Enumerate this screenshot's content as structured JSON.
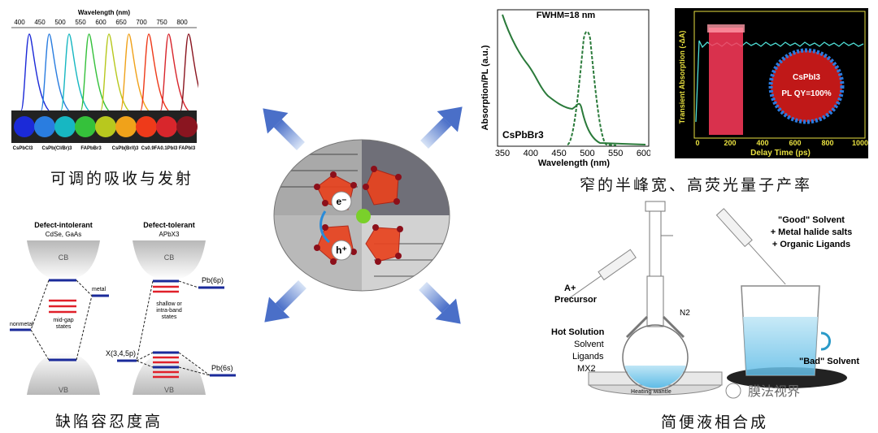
{
  "captions": {
    "top_left": "可调的吸收与发射",
    "top_right": "窄的半峰宽、高荧光量子产率",
    "bottom_left": "缺陷容忍度高",
    "bottom_right": "简便液相合成"
  },
  "spectra": {
    "axis_title": "Wavelength (nm)",
    "ticks": [
      "400",
      "450",
      "500",
      "550",
      "600",
      "650",
      "700",
      "750",
      "800"
    ],
    "colors": [
      "#1b2ad8",
      "#2a7de0",
      "#17b7c2",
      "#35c13b",
      "#b8c81e",
      "#f0a21a",
      "#ee3a1a",
      "#d8262c",
      "#8a1520"
    ],
    "samples": [
      "CsPbCl3",
      "CsPb(Cl/Br)3",
      "FAPbBr3",
      "CsPb(Br/I)3",
      "Cs0.9FA0.1PbI3",
      "FAPbI3"
    ]
  },
  "pl_chart": {
    "annotation": "FWHM=18 nm",
    "compound": "CsPbBr3",
    "ylabel": "Absorption/PL (a.u.)",
    "xlabel": "Wavelength (nm)",
    "xticks": [
      "350",
      "400",
      "450",
      "500",
      "550",
      "600"
    ]
  },
  "ta_chart": {
    "ylabel": "Transient Absorption (-ΔA)",
    "xlabel": "Delay Time (ps)",
    "xticks": [
      "0",
      "200",
      "400",
      "600",
      "800",
      "1000"
    ],
    "compound": "CsPbI3",
    "qy": "PL QY=100%"
  },
  "center": {
    "electron": "e⁻",
    "hole": "h⁺"
  },
  "defect": {
    "left_title": "Defect-intolerant",
    "left_sub": "CdSe, GaAs",
    "right_title": "Defect-tolerant",
    "right_sub": "APbX3",
    "cb": "CB",
    "vb": "VB",
    "metal": "metal",
    "nonmetal": "nonmetal",
    "midgap": [
      "mid-gap",
      "states"
    ],
    "shallow": [
      "shallow or",
      "intra-band",
      "states"
    ],
    "pb6p": "Pb(6p)",
    "pb6s": "Pb(6s)",
    "x_orbital": "X(3,4,5p)"
  },
  "synthesis": {
    "precursor_sym": "A+",
    "precursor": "Precursor",
    "hot_solution": "Hot Solution",
    "solvent": "Solvent",
    "ligands": "Ligands",
    "mx2": "MX2",
    "n2": "N2",
    "heating": "Heating Mantle",
    "good_solvent": "\"Good\" Solvent",
    "salts": "+ Metal halide salts",
    "org_ligands": "+ Organic Ligands",
    "bad_solvent": "\"Bad\" Solvent",
    "watermark": "膜法视界"
  }
}
